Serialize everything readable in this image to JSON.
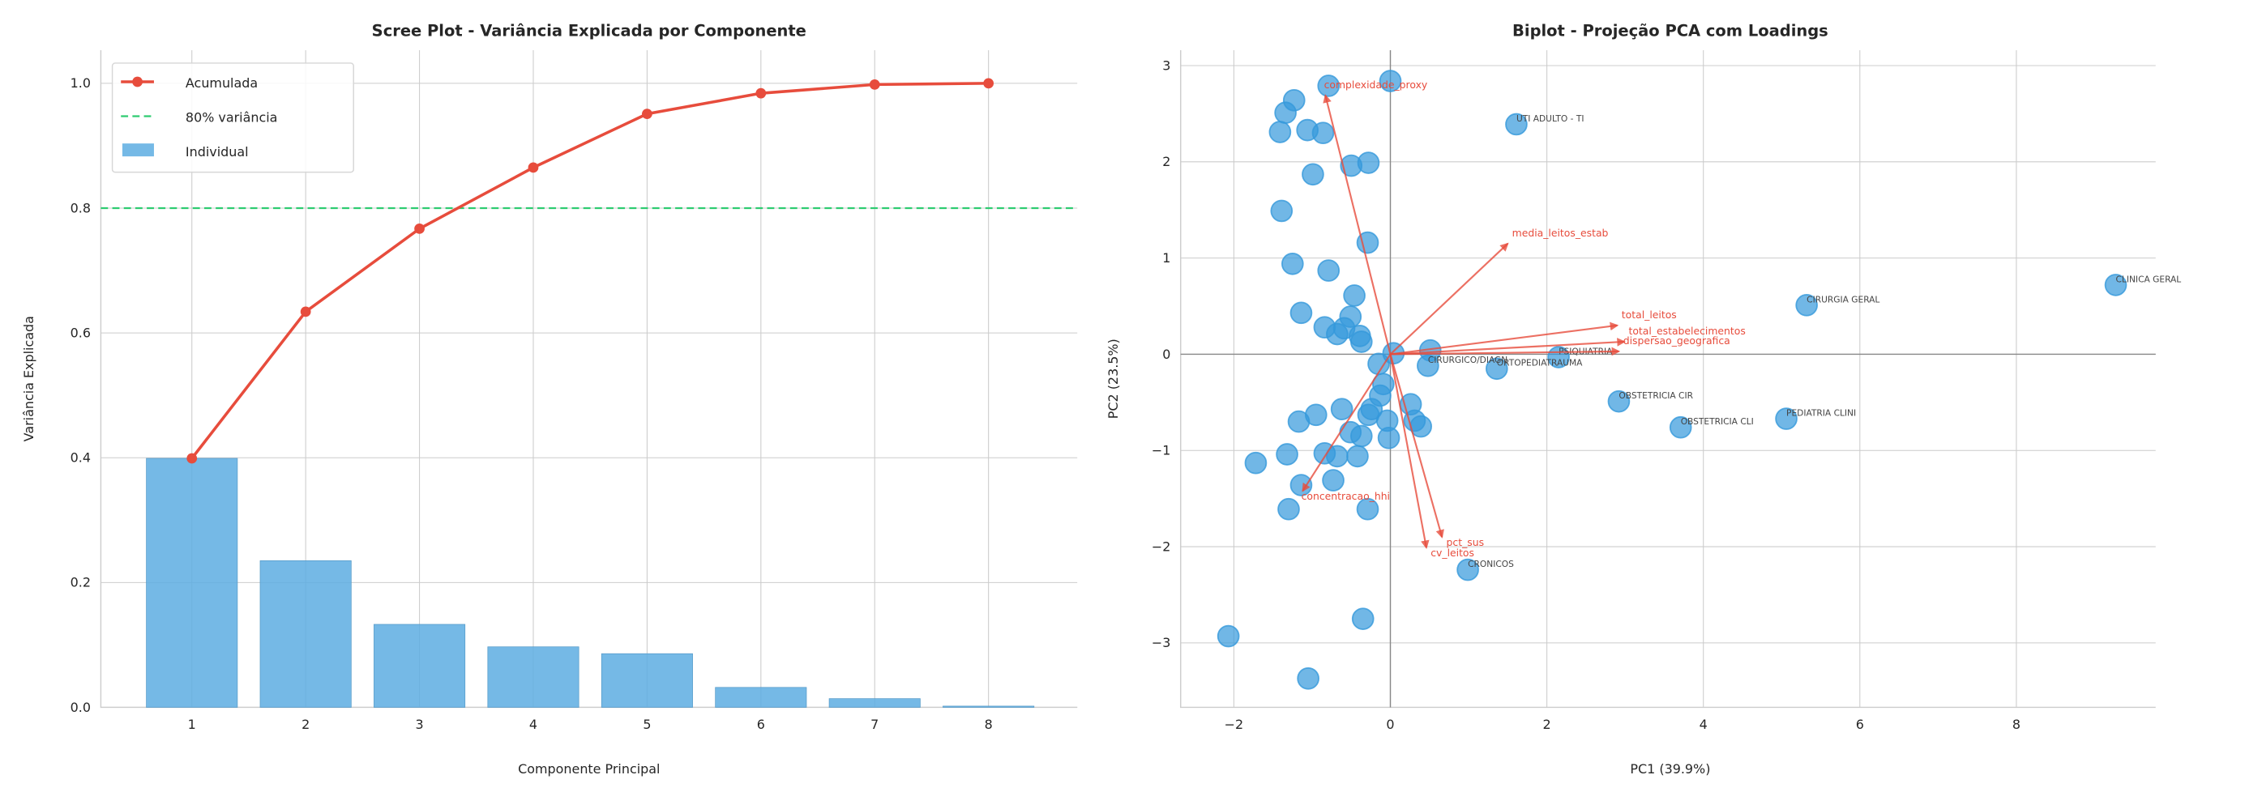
{
  "colors": {
    "bar": "#5DADE2",
    "cumulative": "#e74c3c",
    "threshold": "#2ecc71",
    "points": "#3498db",
    "loadings": "#e74c3c"
  },
  "chart_data": [
    {
      "type": "bar",
      "title": "Scree Plot - Variância Explicada por Componente",
      "xlabel": "Componente Principal",
      "ylabel": "Variância Explicada",
      "categories": [
        1,
        2,
        3,
        4,
        5,
        6,
        7,
        8
      ],
      "xlim": [
        0.2,
        8.78
      ],
      "ylim": [
        0,
        1.053
      ],
      "xticks": [
        "1",
        "2",
        "3",
        "4",
        "5",
        "6",
        "7",
        "8"
      ],
      "yticks": [
        0.0,
        0.2,
        0.4,
        0.6,
        0.8,
        1.0
      ],
      "ytick_labels": [
        "0.0",
        "0.2",
        "0.4",
        "0.6",
        "0.8",
        "1.0"
      ],
      "grid": true,
      "legend_position": "top-left",
      "series": [
        {
          "name": "Individual",
          "kind": "bar",
          "values": [
            0.399,
            0.235,
            0.133,
            0.097,
            0.086,
            0.032,
            0.014,
            0.002
          ]
        },
        {
          "name": "Acumulada",
          "kind": "line",
          "values": [
            0.399,
            0.634,
            0.767,
            0.865,
            0.951,
            0.984,
            0.998,
            1.0
          ]
        },
        {
          "name": "80% variância",
          "kind": "hline",
          "value": 0.8
        }
      ],
      "legend": [
        "Acumulada",
        "80% variância",
        "Individual"
      ]
    },
    {
      "type": "scatter",
      "title": "Biplot - Projeção PCA com Loadings",
      "xlabel": "PC1 (39.9%)",
      "ylabel": "PC2 (23.5%)",
      "xlim": [
        -2.68,
        9.78
      ],
      "ylim": [
        -3.67,
        3.16
      ],
      "xticks": [
        -2,
        0,
        2,
        4,
        6,
        8
      ],
      "xtick_labels": [
        "−2",
        "0",
        "2",
        "4",
        "6",
        "8"
      ],
      "yticks": [
        -3,
        -2,
        -1,
        0,
        1,
        2,
        3
      ],
      "ytick_labels": [
        "−3",
        "−2",
        "−1",
        "0",
        "1",
        "2",
        "3"
      ],
      "grid": true,
      "points": [
        [
          -0.79,
          2.79
        ],
        [
          0,
          2.84
        ],
        [
          -1.23,
          2.64
        ],
        [
          -1.34,
          2.51
        ],
        [
          -1.41,
          2.31
        ],
        [
          -1.06,
          2.33
        ],
        [
          -0.86,
          2.3
        ],
        [
          -0.5,
          1.96
        ],
        [
          -0.28,
          1.99
        ],
        [
          -0.99,
          1.87
        ],
        [
          -1.39,
          1.49
        ],
        [
          -0.29,
          1.16
        ],
        [
          -1.25,
          0.94
        ],
        [
          -0.79,
          0.87
        ],
        [
          -0.46,
          0.61
        ],
        [
          -1.14,
          0.43
        ],
        [
          -0.51,
          0.39
        ],
        [
          -0.84,
          0.28
        ],
        [
          -0.59,
          0.27
        ],
        [
          -0.68,
          0.21
        ],
        [
          -0.39,
          0.19
        ],
        [
          -0.37,
          0.13
        ],
        [
          0.04,
          0.01
        ],
        [
          0.51,
          0.04
        ],
        [
          -0.15,
          -0.1
        ],
        [
          0.48,
          -0.12
        ],
        [
          1.36,
          -0.15
        ],
        [
          2.15,
          -0.03
        ],
        [
          -0.09,
          -0.31
        ],
        [
          -0.13,
          -0.43
        ],
        [
          0.26,
          -0.52
        ],
        [
          -0.24,
          -0.57
        ],
        [
          -0.28,
          -0.63
        ],
        [
          -0.04,
          -0.69
        ],
        [
          -0.62,
          -0.57
        ],
        [
          -0.95,
          -0.63
        ],
        [
          0.31,
          -0.69
        ],
        [
          0.39,
          -0.75
        ],
        [
          -0.51,
          -0.81
        ],
        [
          -0.37,
          -0.85
        ],
        [
          -0.02,
          -0.87
        ],
        [
          -1.17,
          -0.7
        ],
        [
          2.92,
          -0.49
        ],
        [
          3.71,
          -0.76
        ],
        [
          5.06,
          -0.67
        ],
        [
          5.32,
          0.51
        ],
        [
          9.27,
          0.72
        ],
        [
          1.61,
          2.39
        ],
        [
          -0.84,
          -1.03
        ],
        [
          -1.32,
          -1.04
        ],
        [
          -1.72,
          -1.13
        ],
        [
          -0.68,
          -1.06
        ],
        [
          -0.42,
          -1.06
        ],
        [
          -1.14,
          -1.36
        ],
        [
          -0.73,
          -1.31
        ],
        [
          -1.3,
          -1.61
        ],
        [
          -0.29,
          -1.61
        ],
        [
          0.99,
          -2.24
        ],
        [
          -0.35,
          -2.75
        ],
        [
          -2.07,
          -2.93
        ],
        [
          -1.05,
          -3.37
        ]
      ],
      "point_labels": [
        {
          "text": "UTI ADULTO - TI",
          "x": 1.61,
          "y": 2.39
        },
        {
          "text": "CLINICA GERAL",
          "x": 9.27,
          "y": 0.72
        },
        {
          "text": "CIRURGIA GERAL",
          "x": 5.32,
          "y": 0.51
        },
        {
          "text": "PSIQUIATRIA",
          "x": 2.15,
          "y": -0.03
        },
        {
          "text": "CIRURGICO/DIAGN",
          "x": 0.48,
          "y": -0.12
        },
        {
          "text": "ORTOPEDIATRAUMA",
          "x": 1.36,
          "y": -0.15
        },
        {
          "text": "OBSTETRICIA CIR",
          "x": 2.92,
          "y": -0.49
        },
        {
          "text": "OBSTETRICIA CLI",
          "x": 3.71,
          "y": -0.76
        },
        {
          "text": "PEDIATRIA CLINI",
          "x": 5.06,
          "y": -0.67
        },
        {
          "text": "CRONICOS",
          "x": 0.99,
          "y": -2.24
        }
      ],
      "loadings": [
        {
          "name": "complexidade_proxy",
          "x": -0.83,
          "y": 2.69
        },
        {
          "name": "media_leitos_estab",
          "x": 1.5,
          "y": 1.15
        },
        {
          "name": "total_leitos",
          "x": 2.9,
          "y": 0.3
        },
        {
          "name": "total_estabelecimentos",
          "x": 2.99,
          "y": 0.13
        },
        {
          "name": "dispersao_geografica",
          "x": 2.92,
          "y": 0.03
        },
        {
          "name": "concentracao_hhi",
          "x": -1.12,
          "y": -1.42
        },
        {
          "name": "pct_sus",
          "x": 0.66,
          "y": -1.9
        },
        {
          "name": "cv_leitos",
          "x": 0.46,
          "y": -2.01
        }
      ]
    }
  ]
}
